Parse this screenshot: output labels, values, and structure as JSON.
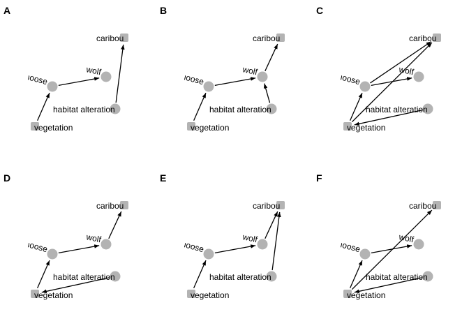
{
  "figure": {
    "node_color": "#b3b3b3",
    "edge_color": "#000000",
    "nodes": [
      {
        "id": "caribou",
        "label": "caribou",
        "shape": "square"
      },
      {
        "id": "wolf",
        "label": "wolf",
        "shape": "circle"
      },
      {
        "id": "moose",
        "label": "moose",
        "shape": "circle"
      },
      {
        "id": "habitat",
        "label": "habitat alteration",
        "shape": "circle"
      },
      {
        "id": "vegetation",
        "label": "vegetation",
        "shape": "square"
      }
    ],
    "panels": [
      {
        "letter": "A",
        "edges": [
          [
            "vegetation",
            "moose"
          ],
          [
            "moose",
            "wolf"
          ],
          [
            "habitat",
            "caribou"
          ]
        ]
      },
      {
        "letter": "B",
        "edges": [
          [
            "vegetation",
            "moose"
          ],
          [
            "moose",
            "wolf"
          ],
          [
            "wolf",
            "caribou"
          ],
          [
            "habitat",
            "wolf"
          ]
        ]
      },
      {
        "letter": "C",
        "edges": [
          [
            "vegetation",
            "moose"
          ],
          [
            "moose",
            "wolf"
          ],
          [
            "moose",
            "caribou"
          ],
          [
            "vegetation",
            "caribou"
          ],
          [
            "habitat",
            "vegetation"
          ]
        ]
      },
      {
        "letter": "D",
        "edges": [
          [
            "vegetation",
            "moose"
          ],
          [
            "moose",
            "wolf"
          ],
          [
            "wolf",
            "caribou"
          ],
          [
            "habitat",
            "vegetation"
          ]
        ]
      },
      {
        "letter": "E",
        "edges": [
          [
            "vegetation",
            "moose"
          ],
          [
            "moose",
            "wolf"
          ],
          [
            "wolf",
            "caribou"
          ],
          [
            "habitat",
            "caribou"
          ]
        ]
      },
      {
        "letter": "F",
        "edges": [
          [
            "vegetation",
            "moose"
          ],
          [
            "moose",
            "wolf"
          ],
          [
            "vegetation",
            "caribou"
          ],
          [
            "habitat",
            "vegetation"
          ]
        ]
      }
    ]
  }
}
